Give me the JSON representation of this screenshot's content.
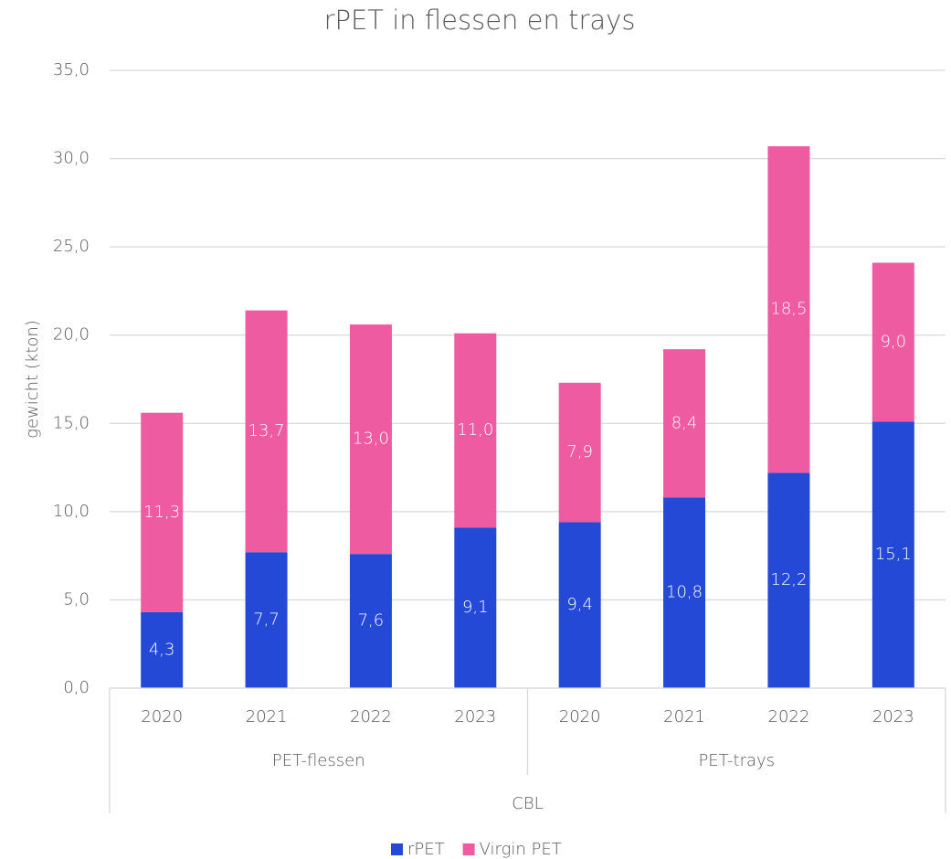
{
  "chart_data": {
    "type": "stacked_bar",
    "title": "rPET in flessen en trays",
    "y_label": "gewicht (kton)",
    "groups": [
      {
        "label": "PET-flessen",
        "categories": [
          "2020",
          "2021",
          "2022",
          "2023"
        ]
      },
      {
        "label": "PET-trays",
        "categories": [
          "2020",
          "2021",
          "2022",
          "2023"
        ]
      }
    ],
    "supergroup": "CBL",
    "series": [
      {
        "name": "rPET",
        "color": "#2449d6",
        "values": [
          4.3,
          7.7,
          7.6,
          9.1,
          9.4,
          10.8,
          12.2,
          15.1
        ],
        "value_labels": [
          "4,3",
          "7,7",
          "7,6",
          "9,1",
          "9,4",
          "10,8",
          "12,2",
          "15,1"
        ]
      },
      {
        "name": "Virgin PET",
        "color": "#ef5ba1",
        "values": [
          11.3,
          13.7,
          13.0,
          11.0,
          7.9,
          8.4,
          18.5,
          9.0
        ],
        "value_labels": [
          "11,3",
          "13,7",
          "13,0",
          "11,0",
          "7,9",
          "8,4",
          "18,5",
          "9,0"
        ]
      }
    ],
    "ylim": [
      0,
      35
    ],
    "yticks": [
      {
        "value": 0,
        "label": "0,0"
      },
      {
        "value": 5,
        "label": "5,0"
      },
      {
        "value": 10,
        "label": "10,0"
      },
      {
        "value": 15,
        "label": "15,0"
      },
      {
        "value": 20,
        "label": "20,0"
      },
      {
        "value": 25,
        "label": "25,0"
      },
      {
        "value": 30,
        "label": "30,0"
      },
      {
        "value": 35,
        "label": "35,0"
      }
    ],
    "grid": true,
    "legend": "bottom"
  }
}
